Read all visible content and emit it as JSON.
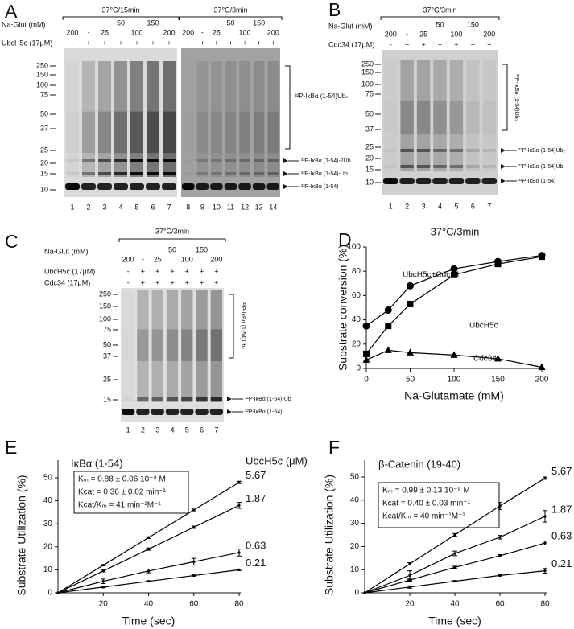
{
  "panel_letters": [
    "A",
    "B",
    "C",
    "D",
    "E",
    "F"
  ],
  "gels": [
    {
      "row_labels": [
        "Na-Glut (mM)",
        "UbcH5c (17μM)"
      ],
      "sections": [
        {
          "header": "37°C/15min",
          "conc": [
            "200",
            "-",
            "25",
            "50",
            "100",
            "150",
            "200"
          ],
          "enzymes": [
            [
              "-",
              "+",
              "+",
              "+",
              "+",
              "+",
              "+"
            ]
          ],
          "lanes": [
            1,
            2,
            3,
            4,
            5,
            6,
            7
          ]
        },
        {
          "header": "37°C/3min",
          "conc": [
            "200",
            "-",
            "25",
            "50",
            "100",
            "150",
            "200"
          ],
          "enzymes": [
            [
              "-",
              "+",
              "+",
              "+",
              "+",
              "+",
              "+"
            ]
          ],
          "lanes": [
            8,
            9,
            10,
            11,
            12,
            13,
            14
          ]
        }
      ],
      "mw": [
        250,
        150,
        100,
        75,
        50,
        37,
        25,
        20,
        15,
        10
      ],
      "species": [
        "³²P-IκBα (1-54)Ubₙ",
        "³²P-IκBα (1-54)-2Ub",
        "³²P-IκBα (1-54)-Ub",
        "³²P-IκBα (1-54)"
      ]
    },
    {
      "row_labels": [
        "Na-Glut (mM)",
        "Cdc34 (17μM)"
      ],
      "sections": [
        {
          "header": "37°C/3min",
          "conc": [
            "200",
            "-",
            "25",
            "50",
            "100",
            "150",
            "200"
          ],
          "enzymes": [
            [
              "-",
              "+",
              "+",
              "+",
              "+",
              "+",
              "+"
            ]
          ],
          "lanes": [
            1,
            2,
            3,
            4,
            5,
            6,
            7
          ]
        }
      ],
      "mw": [
        250,
        150,
        100,
        75,
        50,
        37,
        25,
        20,
        15,
        10
      ],
      "species": [
        "³²P-IκBα (1-54)Ubₙ",
        "³²P-IκBα (1-54)Ub₂",
        "³²P-IκBα (1-54)Ub",
        "³²P-IκBα (1-54)"
      ]
    },
    {
      "row_labels": [
        "Na-Glut (mM)",
        "UbcH5c (17μM)",
        "Cdc34 (17μM)"
      ],
      "sections": [
        {
          "header": "37°C/3min",
          "conc": [
            "200",
            "-",
            "25",
            "50",
            "100",
            "150",
            "200"
          ],
          "enzymes": [
            [
              "-",
              "+",
              "+",
              "+",
              "+",
              "+",
              "+"
            ],
            [
              "-",
              "+",
              "+",
              "+",
              "+",
              "+",
              "+"
            ]
          ],
          "lanes": [
            1,
            2,
            3,
            4,
            5,
            6,
            7
          ]
        }
      ],
      "mw": [
        250,
        150,
        100,
        75,
        50,
        37,
        25,
        15
      ],
      "species": [
        "³²P-IκBα (1-54)Ubₙ",
        "³²P-IκBα (1-54)-Ub",
        "³²P-IκBα (1-54)"
      ]
    }
  ],
  "chart_data": [
    {
      "type": "line",
      "title": "37°C/3min",
      "x_label": "Na-Glutamate (mM)",
      "y_label": "Substrate conversion (%)",
      "x": [
        0,
        25,
        50,
        100,
        150,
        200
      ],
      "series": [
        {
          "name": "UbcH5c+Cdc34",
          "color": "#000000",
          "marker": "circle",
          "values": [
            35,
            48,
            68,
            82,
            88,
            93
          ]
        },
        {
          "name": "UbcH5c",
          "color": "#000000",
          "marker": "square",
          "values": [
            12,
            35,
            53,
            77,
            86,
            92
          ]
        },
        {
          "name": "Cdc34",
          "color": "#000000",
          "marker": "triangle",
          "values": [
            7,
            15,
            13,
            11,
            8,
            1
          ]
        }
      ],
      "xlim": [
        0,
        200
      ],
      "xticks": [
        0,
        50,
        100,
        150,
        200
      ],
      "ylim": [
        0,
        100
      ],
      "yticks": [
        0,
        20,
        40,
        60,
        80,
        100
      ]
    },
    {
      "type": "line",
      "title": "IκBα (1-54)",
      "x_label": "Time (sec)",
      "y_label": "Substrate Utilization (%)",
      "legend_title": "UbcH5c (μM)",
      "annotations": [
        "Kₘ = 0.88 ± 0.06 10⁻⁸ M",
        "Kcat = 0.36 ± 0.02 min⁻¹",
        "Kcat/Kₘ = 41 min⁻¹M⁻¹"
      ],
      "x": [
        0,
        20,
        40,
        60,
        80
      ],
      "series": [
        {
          "name": "5.67",
          "color": "#000000",
          "values": [
            0,
            12,
            24,
            36,
            48
          ],
          "errors": [
            0,
            0.3,
            0.4,
            0.4,
            0.5
          ]
        },
        {
          "name": "1.87",
          "color": "#000000",
          "values": [
            0,
            9.5,
            19,
            28.5,
            38
          ],
          "errors": [
            0,
            0.4,
            0.5,
            0.5,
            1.3
          ]
        },
        {
          "name": "0.63",
          "color": "#000000",
          "values": [
            0,
            5,
            9.5,
            13.5,
            17.5
          ],
          "errors": [
            0,
            1,
            0.8,
            1.5,
            1.5
          ]
        },
        {
          "name": "0.21",
          "color": "#000000",
          "values": [
            0,
            2.5,
            5,
            7.5,
            10
          ],
          "errors": [
            0,
            0.3,
            0.3,
            0.3,
            0.3
          ]
        }
      ],
      "xlim": [
        0,
        80
      ],
      "xticks": [
        20,
        40,
        60,
        80
      ],
      "ylim": [
        0,
        50
      ],
      "yticks": [
        0,
        10,
        20,
        30,
        40,
        50
      ]
    },
    {
      "type": "line",
      "title": "β-Catenin (19-40)",
      "x_label": "Time (sec)",
      "y_label": "Substrate Utilization (%)",
      "annotations": [
        "Kₘ = 0.99 ± 0.13 10⁻⁸ M",
        "Kcat = 0.40 ± 0.03 min⁻¹",
        "Kcat/Kₘ = 40 min⁻¹M⁻¹"
      ],
      "x": [
        0,
        20,
        40,
        60,
        80
      ],
      "series": [
        {
          "name": "5.67",
          "color": "#000000",
          "values": [
            0,
            12.5,
            25,
            37.5,
            49.5
          ],
          "errors": [
            0,
            0.5,
            0.6,
            1.5,
            0.5
          ]
        },
        {
          "name": "1.87",
          "color": "#000000",
          "values": [
            0,
            7.5,
            17,
            24,
            33
          ],
          "errors": [
            0,
            2,
            1,
            0.8,
            2.5
          ]
        },
        {
          "name": "0.63",
          "color": "#000000",
          "values": [
            0,
            5.5,
            11,
            16,
            21.5
          ],
          "errors": [
            0,
            0.5,
            0.5,
            0.5,
            0.8
          ]
        },
        {
          "name": "0.21",
          "color": "#000000",
          "values": [
            0,
            2.5,
            5,
            7.5,
            9.5
          ],
          "errors": [
            0,
            0.5,
            0.3,
            0.3,
            1
          ]
        }
      ],
      "xlim": [
        0,
        80
      ],
      "xticks": [
        20,
        40,
        60,
        80
      ],
      "ylim": [
        0,
        50
      ],
      "yticks": [
        0,
        10,
        20,
        30,
        40,
        50
      ]
    }
  ]
}
